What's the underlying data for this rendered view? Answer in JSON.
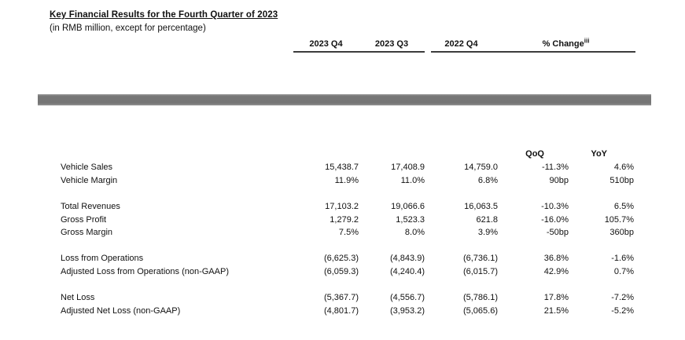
{
  "document": {
    "title": "Key Financial Results for the Fourth Quarter of 2023",
    "subtitle": "(in RMB million, except for percentage)"
  },
  "table": {
    "period_headers": [
      "2023 Q4",
      "2023 Q3",
      "2022 Q4"
    ],
    "change_header": "% Change",
    "change_footnote": "iii",
    "subheaders": [
      "QoQ",
      "YoY"
    ],
    "groups": [
      [
        {
          "label": "Vehicle Sales",
          "values": [
            "15,438.7",
            "17,408.9",
            "14,759.0",
            "-11.3%",
            "4.6%"
          ]
        },
        {
          "label": "Vehicle Margin",
          "values": [
            "11.9%",
            "11.0%",
            "6.8%",
            "90bp",
            "510bp"
          ]
        }
      ],
      [
        {
          "label": "Total Revenues",
          "values": [
            "17,103.2",
            "19,066.6",
            "16,063.5",
            "-10.3%",
            "6.5%"
          ]
        },
        {
          "label": "Gross Profit",
          "values": [
            "1,279.2",
            "1,523.3",
            "621.8",
            "-16.0%",
            "105.7%"
          ]
        },
        {
          "label": "Gross Margin",
          "values": [
            "7.5%",
            "8.0%",
            "3.9%",
            "-50bp",
            "360bp"
          ]
        }
      ],
      [
        {
          "label": "Loss from Operations",
          "values": [
            "(6,625.3)",
            "(4,843.9)",
            "(6,736.1)",
            "36.8%",
            "-1.6%"
          ]
        },
        {
          "label": "Adjusted Loss from Operations (non-GAAP)",
          "values": [
            "(6,059.3)",
            "(4,240.4)",
            "(6,015.7)",
            "42.9%",
            "0.7%"
          ]
        }
      ],
      [
        {
          "label": "Net Loss",
          "values": [
            "(5,367.7)",
            "(4,556.7)",
            "(5,786.1)",
            "17.8%",
            "-7.2%"
          ]
        },
        {
          "label": "Adjusted Net Loss (non-GAAP)",
          "values": [
            "(4,801.7)",
            "(3,953.2)",
            "(5,065.6)",
            "21.5%",
            "-5.2%"
          ]
        }
      ]
    ]
  },
  "colors": {
    "text": "#111111",
    "header_rule": "#3c3c3c",
    "divider_bar": "#757575"
  }
}
